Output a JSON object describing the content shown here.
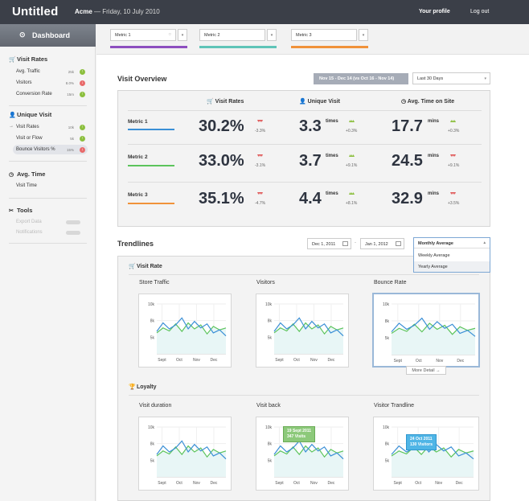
{
  "app": {
    "title": "Untitled",
    "org": "Acme",
    "date": "— Friday, 10 July 2010",
    "profile": "Your profile",
    "logout": "Log out"
  },
  "sidebar": {
    "dashboard": "Dashboard",
    "visit_rates": {
      "title": "Visit Rates",
      "items": [
        {
          "label": "Avg. Traffic",
          "value": "25k",
          "trend": "up"
        },
        {
          "label": "Visitors",
          "value": "8.0%",
          "trend": "down"
        },
        {
          "label": "Conversion Rate",
          "value": "15m",
          "trend": "up"
        }
      ]
    },
    "unique_visit": {
      "title": "Unique Visit",
      "items": [
        {
          "label": "Visit Rates",
          "value": "10k",
          "trend": "up"
        },
        {
          "label": "Visit or Flow",
          "value": "5k",
          "trend": "up"
        },
        {
          "label": "Bounce Visitors %",
          "value": "15%",
          "trend": "down"
        }
      ]
    },
    "avg_time": {
      "title": "Avg. Time",
      "items": [
        {
          "label": "Visit Time"
        }
      ]
    },
    "tools": {
      "title": "Tools",
      "items": [
        {
          "label": "Export Data"
        },
        {
          "label": "Notifications"
        }
      ]
    }
  },
  "metrics": [
    {
      "label": "Metric 1",
      "color": "#8d4fbf"
    },
    {
      "label": "Metric 2",
      "color": "#5fc4b8"
    },
    {
      "label": "Metric 3",
      "color": "#f0923a"
    }
  ],
  "overview": {
    "title": "Visit Overview",
    "date_range": "Nov 15 - Dec 14 (vs Oct 16 - Nov 14)",
    "period": "Last 30 Days",
    "headers": [
      "Visit Rates",
      "Unique Visit",
      "Avg. Time on Site"
    ],
    "rows": [
      {
        "name": "Metric 1",
        "color": "#3a8fd6",
        "rate": "30.2%",
        "rate_delta": "-3.3%",
        "unique": "3.3",
        "unique_unit": "times",
        "unique_delta": "+0.3%",
        "time": "17.7",
        "time_unit": "mins",
        "time_delta": "+0.3%"
      },
      {
        "name": "Metric 2",
        "color": "#5cc45c",
        "rate": "33.0%",
        "rate_delta": "-3.1%",
        "unique": "3.7",
        "unique_unit": "times",
        "unique_delta": "+9.1%",
        "time": "24.5",
        "time_unit": "mins",
        "time_delta": "+9.1%"
      },
      {
        "name": "Metric 3",
        "color": "#f0923a",
        "rate": "35.1%",
        "rate_delta": "-4.7%",
        "unique": "4.4",
        "unique_unit": "times",
        "unique_delta": "+8.1%",
        "time": "32.9",
        "time_unit": "mins",
        "time_delta": "+3.5%"
      }
    ]
  },
  "trendlines": {
    "title": "Trendlines",
    "date_from": "Dec 1, 2011",
    "date_sep": "-",
    "date_to": "Jan 1, 2012",
    "average": {
      "selected": "Monthly Average",
      "options": [
        "Weekly Average",
        "Yearly Average"
      ]
    },
    "visit_rate": "Visit Rate",
    "loyalty": "Loyalty",
    "more_detail": "More Detail →",
    "charts": [
      {
        "title": "Store Traffic"
      },
      {
        "title": "Visitors"
      },
      {
        "title": "Bounce Rate"
      },
      {
        "title": "Visit duration"
      },
      {
        "title": "Visit back",
        "tip1": "19 Sept 2011",
        "tip2": "347 Visits"
      },
      {
        "title": "Visitor Trandline",
        "tip1": "24 Oct 2011",
        "tip2": "130 Visitors"
      }
    ],
    "axis": {
      "y": [
        "10k",
        "8k",
        "5k"
      ],
      "x": [
        "Sept",
        "Oct",
        "Nov",
        "Dec"
      ]
    }
  }
}
